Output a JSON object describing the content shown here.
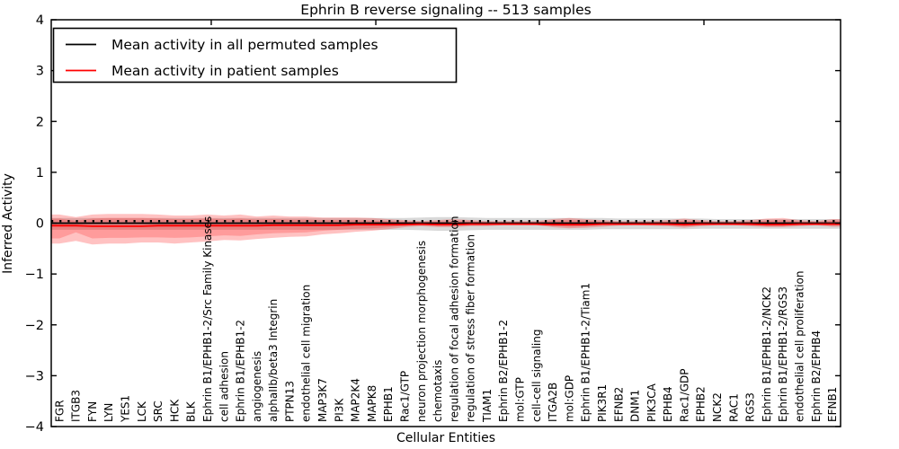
{
  "figure": {
    "title": "Ephrin B reverse signaling -- 513 samples",
    "xlabel": "Cellular Entities",
    "ylabel": "Inferred Activity"
  },
  "legend": {
    "entries": [
      {
        "label": "Mean activity in all permuted samples",
        "color": "#000000"
      },
      {
        "label": "Mean activity in patient samples",
        "color": "#ff0000"
      }
    ]
  },
  "chart_data": {
    "type": "line",
    "title": "Ephrin B reverse signaling -- 513 samples",
    "xlabel": "Cellular Entities",
    "ylabel": "Inferred Activity",
    "ylim": [
      -4,
      4
    ],
    "yticks": [
      -4,
      -3,
      -2,
      -1,
      0,
      1,
      2,
      3,
      4
    ],
    "grid": false,
    "legend_position": "upper left",
    "categories": [
      "FGR",
      "ITGB3",
      "FYN",
      "LYN",
      "YES1",
      "LCK",
      "SRC",
      "HCK",
      "BLK",
      "Ephrin B1/EPHB1-2/Src Family Kinases",
      "cell adhesion",
      "Ephrin B1/EPHB1-2",
      "angiogenesis",
      "alphaIIb/beta3 Integrin",
      "PTPN13",
      "endothelial cell migration",
      "MAP3K7",
      "PI3K",
      "MAP2K4",
      "MAPK8",
      "EPHB1",
      "Rac1/GTP",
      "neuron projection morphogenesis",
      "chemotaxis",
      "regulation of focal adhesion formation",
      "regulation of stress fiber formation",
      "TIAM1",
      "Ephrin B2/EPHB1-2",
      "mol:GTP",
      "cell-cell signaling",
      "ITGA2B",
      "mol:GDP",
      "Ephrin B1/EPHB1-2/Tiam1",
      "PIK3R1",
      "EFNB2",
      "DNM1",
      "PIK3CA",
      "EPHB4",
      "Rac1/GDP",
      "EPHB2",
      "NCK2",
      "RAC1",
      "RGS3",
      "Ephrin B1/EPHB1-2/NCK2",
      "Ephrin B1/EPHB1-2/RGS3",
      "endothelial cell proliferation",
      "Ephrin B2/EPHB4",
      "EFNB1"
    ],
    "series": [
      {
        "name": "Mean activity in all permuted samples",
        "color": "#000000",
        "values": [
          0,
          0,
          0,
          0,
          0,
          0,
          0,
          0,
          0,
          0,
          0,
          0,
          0,
          0,
          0,
          0,
          0,
          0,
          0,
          0,
          0,
          0,
          0,
          0,
          0,
          0,
          0,
          0,
          0,
          0,
          0,
          0,
          0,
          0,
          0,
          0,
          0,
          0,
          0,
          0,
          0,
          0,
          0,
          0,
          0,
          0,
          0,
          0
        ]
      },
      {
        "name": "Mean activity in patient samples",
        "color": "#ff0000",
        "values": [
          -0.05,
          -0.05,
          -0.06,
          -0.06,
          -0.06,
          -0.06,
          -0.05,
          -0.05,
          -0.05,
          -0.05,
          -0.05,
          -0.05,
          -0.05,
          -0.04,
          -0.04,
          -0.04,
          -0.04,
          -0.04,
          -0.03,
          -0.03,
          -0.03,
          -0.03,
          -0.02,
          -0.03,
          -0.03,
          -0.02,
          -0.02,
          -0.02,
          -0.02,
          -0.02,
          -0.03,
          -0.03,
          -0.03,
          -0.02,
          -0.02,
          -0.02,
          -0.02,
          -0.02,
          -0.03,
          -0.02,
          -0.02,
          -0.02,
          -0.02,
          -0.03,
          -0.03,
          -0.02,
          -0.02,
          -0.02
        ]
      }
    ],
    "bands": [
      {
        "name": "permuted samples range",
        "color": "#999999",
        "opacity": 0.38,
        "upper": [
          0.1,
          0.1,
          0.1,
          0.1,
          0.1,
          0.1,
          0.1,
          0.1,
          0.1,
          0.1,
          0.1,
          0.1,
          0.1,
          0.1,
          0.1,
          0.1,
          0.1,
          0.1,
          0.1,
          0.1,
          0.1,
          0.1,
          0.11,
          0.12,
          0.12,
          0.11,
          0.1,
          0.1,
          0.1,
          0.1,
          0.1,
          0.1,
          0.1,
          0.1,
          0.09,
          0.09,
          0.09,
          0.09,
          0.09,
          0.09,
          0.08,
          0.08,
          0.08,
          0.08,
          0.08,
          0.08,
          0.08,
          0.08
        ],
        "lower": [
          -0.13,
          -0.13,
          -0.13,
          -0.13,
          -0.13,
          -0.13,
          -0.13,
          -0.13,
          -0.13,
          -0.13,
          -0.13,
          -0.13,
          -0.13,
          -0.13,
          -0.13,
          -0.13,
          -0.13,
          -0.13,
          -0.13,
          -0.13,
          -0.13,
          -0.13,
          -0.14,
          -0.15,
          -0.15,
          -0.14,
          -0.13,
          -0.13,
          -0.13,
          -0.13,
          -0.13,
          -0.13,
          -0.13,
          -0.12,
          -0.12,
          -0.12,
          -0.12,
          -0.12,
          -0.12,
          -0.11,
          -0.11,
          -0.11,
          -0.11,
          -0.11,
          -0.11,
          -0.11,
          -0.11,
          -0.11
        ]
      },
      {
        "name": "patient samples range (outer)",
        "color": "#ff0000",
        "opacity": 0.24,
        "upper": [
          0.17,
          0.12,
          0.17,
          0.18,
          0.18,
          0.18,
          0.17,
          0.15,
          0.15,
          0.17,
          0.15,
          0.17,
          0.13,
          0.15,
          0.13,
          0.13,
          0.11,
          0.11,
          0.11,
          0.1,
          0.08,
          0.06,
          0.04,
          0.06,
          0.08,
          0.06,
          0.04,
          0.04,
          0.04,
          0.04,
          0.08,
          0.1,
          0.08,
          0.06,
          0.04,
          0.04,
          0.04,
          0.06,
          0.09,
          0.06,
          0.04,
          0.04,
          0.06,
          0.09,
          0.1,
          0.06,
          0.04,
          0.08
        ],
        "lower": [
          -0.4,
          -0.35,
          -0.42,
          -0.4,
          -0.4,
          -0.38,
          -0.38,
          -0.4,
          -0.38,
          -0.36,
          -0.33,
          -0.34,
          -0.31,
          -0.29,
          -0.27,
          -0.26,
          -0.22,
          -0.2,
          -0.17,
          -0.15,
          -0.12,
          -0.08,
          -0.06,
          -0.08,
          -0.08,
          -0.06,
          -0.06,
          -0.04,
          -0.04,
          -0.04,
          -0.08,
          -0.1,
          -0.09,
          -0.07,
          -0.05,
          -0.04,
          -0.05,
          -0.06,
          -0.09,
          -0.06,
          -0.04,
          -0.04,
          -0.06,
          -0.08,
          -0.08,
          -0.06,
          -0.04,
          -0.07
        ]
      },
      {
        "name": "patient samples range (inner)",
        "color": "#ff0000",
        "opacity": 0.2,
        "upper": [
          0.09,
          0.05,
          0.09,
          0.1,
          0.1,
          0.1,
          0.09,
          0.08,
          0.08,
          0.09,
          0.08,
          0.09,
          0.07,
          0.08,
          0.07,
          0.07,
          0.06,
          0.06,
          0.06,
          0.05,
          0.04,
          0.03,
          0.02,
          0.03,
          0.04,
          0.03,
          0.02,
          0.02,
          0.02,
          0.02,
          0.05,
          0.06,
          0.05,
          0.03,
          0.02,
          0.02,
          0.02,
          0.03,
          0.05,
          0.03,
          0.02,
          0.02,
          0.03,
          0.05,
          0.06,
          0.03,
          0.02,
          0.05
        ],
        "lower": [
          -0.3,
          -0.18,
          -0.3,
          -0.29,
          -0.29,
          -0.28,
          -0.28,
          -0.29,
          -0.28,
          -0.26,
          -0.24,
          -0.25,
          -0.22,
          -0.2,
          -0.19,
          -0.18,
          -0.15,
          -0.13,
          -0.11,
          -0.1,
          -0.08,
          -0.05,
          -0.04,
          -0.05,
          -0.05,
          -0.04,
          -0.04,
          -0.03,
          -0.03,
          -0.03,
          -0.05,
          -0.07,
          -0.06,
          -0.04,
          -0.03,
          -0.03,
          -0.03,
          -0.04,
          -0.06,
          -0.04,
          -0.03,
          -0.03,
          -0.04,
          -0.05,
          -0.05,
          -0.04,
          -0.03,
          -0.05
        ]
      }
    ]
  }
}
